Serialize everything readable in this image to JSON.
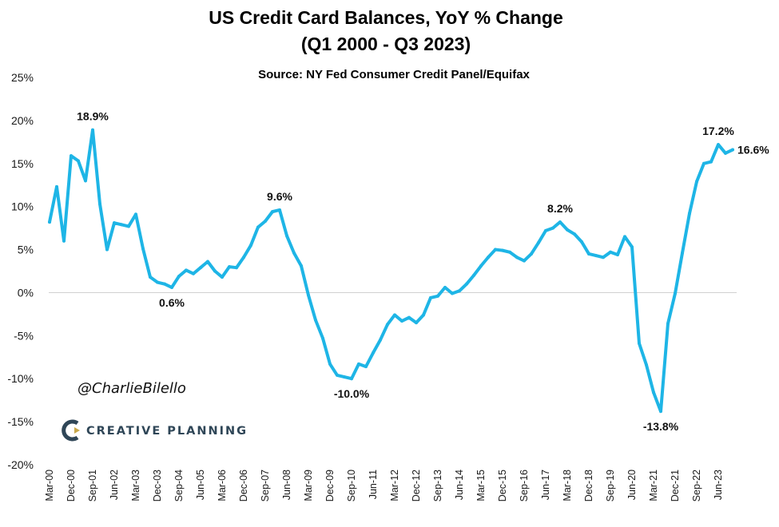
{
  "chart_data": {
    "type": "line",
    "title_line1": "US Credit Card Balances, YoY % Change",
    "title_line2": "(Q1 2000 - Q3 2023)",
    "subtitle": "Source: NY Fed Consumer Credit Panel/Equifax",
    "ylim": [
      -20,
      25
    ],
    "ytick_values": [
      25,
      20,
      15,
      10,
      5,
      0,
      -5,
      -10,
      -15,
      -20
    ],
    "ytick_labels": [
      "25%",
      "20%",
      "15%",
      "10%",
      "5%",
      "0%",
      "-5%",
      "-10%",
      "-15%",
      "-20%"
    ],
    "grid": false,
    "x_labels": [
      "Mar-00",
      "Dec-00",
      "Sep-01",
      "Jun-02",
      "Mar-03",
      "Dec-03",
      "Sep-04",
      "Jun-05",
      "Mar-06",
      "Dec-06",
      "Sep-07",
      "Jun-08",
      "Mar-09",
      "Dec-09",
      "Sep-10",
      "Jun-11",
      "Mar-12",
      "Dec-12",
      "Sep-13",
      "Jun-14",
      "Mar-15",
      "Dec-15",
      "Sep-16",
      "Jun-17",
      "Mar-18",
      "Dec-18",
      "Sep-19",
      "Jun-20",
      "Mar-21",
      "Dec-21",
      "Sep-22",
      "Jun-23"
    ],
    "series": [
      {
        "name": "US Credit Card Balances YoY % Change",
        "color": "#1eb5e6",
        "values": [
          8.2,
          12.3,
          6.0,
          15.9,
          15.3,
          13.0,
          18.9,
          10.3,
          5.0,
          8.1,
          7.9,
          7.7,
          9.1,
          5.1,
          1.8,
          1.2,
          1.0,
          0.6,
          1.9,
          2.6,
          2.2,
          2.9,
          3.6,
          2.5,
          1.8,
          3.0,
          2.9,
          4.1,
          5.5,
          7.6,
          8.3,
          9.4,
          9.6,
          6.6,
          4.6,
          3.1,
          -0.3,
          -3.2,
          -5.3,
          -8.3,
          -9.6,
          -9.8,
          -10.0,
          -8.3,
          -8.6,
          -7.0,
          -5.5,
          -3.7,
          -2.6,
          -3.3,
          -2.9,
          -3.5,
          -2.6,
          -0.6,
          -0.4,
          0.6,
          -0.1,
          0.2,
          1.0,
          2.0,
          3.1,
          4.1,
          5.0,
          4.9,
          4.7,
          4.1,
          3.7,
          4.5,
          5.8,
          7.2,
          7.5,
          8.2,
          7.3,
          6.8,
          5.9,
          4.5,
          4.3,
          4.1,
          4.7,
          4.4,
          6.5,
          5.3,
          -5.9,
          -8.4,
          -11.6,
          -13.8,
          -3.6,
          -0.1,
          4.6,
          9.2,
          12.9,
          15.0,
          15.2,
          17.2,
          16.2,
          16.6
        ]
      }
    ],
    "annotations": [
      {
        "index": 6,
        "label": "18.9%",
        "placement": "above"
      },
      {
        "index": 17,
        "label": "0.6%",
        "placement": "below"
      },
      {
        "index": 32,
        "label": "9.6%",
        "placement": "above"
      },
      {
        "index": 42,
        "label": "-10.0%",
        "placement": "below"
      },
      {
        "index": 71,
        "label": "8.2%",
        "placement": "above"
      },
      {
        "index": 85,
        "label": "-13.8%",
        "placement": "below"
      },
      {
        "index": 93,
        "label": "17.2%",
        "placement": "above"
      },
      {
        "index": 95,
        "label": "16.6%",
        "placement": "right"
      }
    ]
  },
  "watermark": {
    "handle": "@CharlieBilello",
    "logo_name": "CREATIVE PLANNING",
    "logo_mark_color": "#2f4657",
    "logo_accent_color": "#c8a84b"
  }
}
